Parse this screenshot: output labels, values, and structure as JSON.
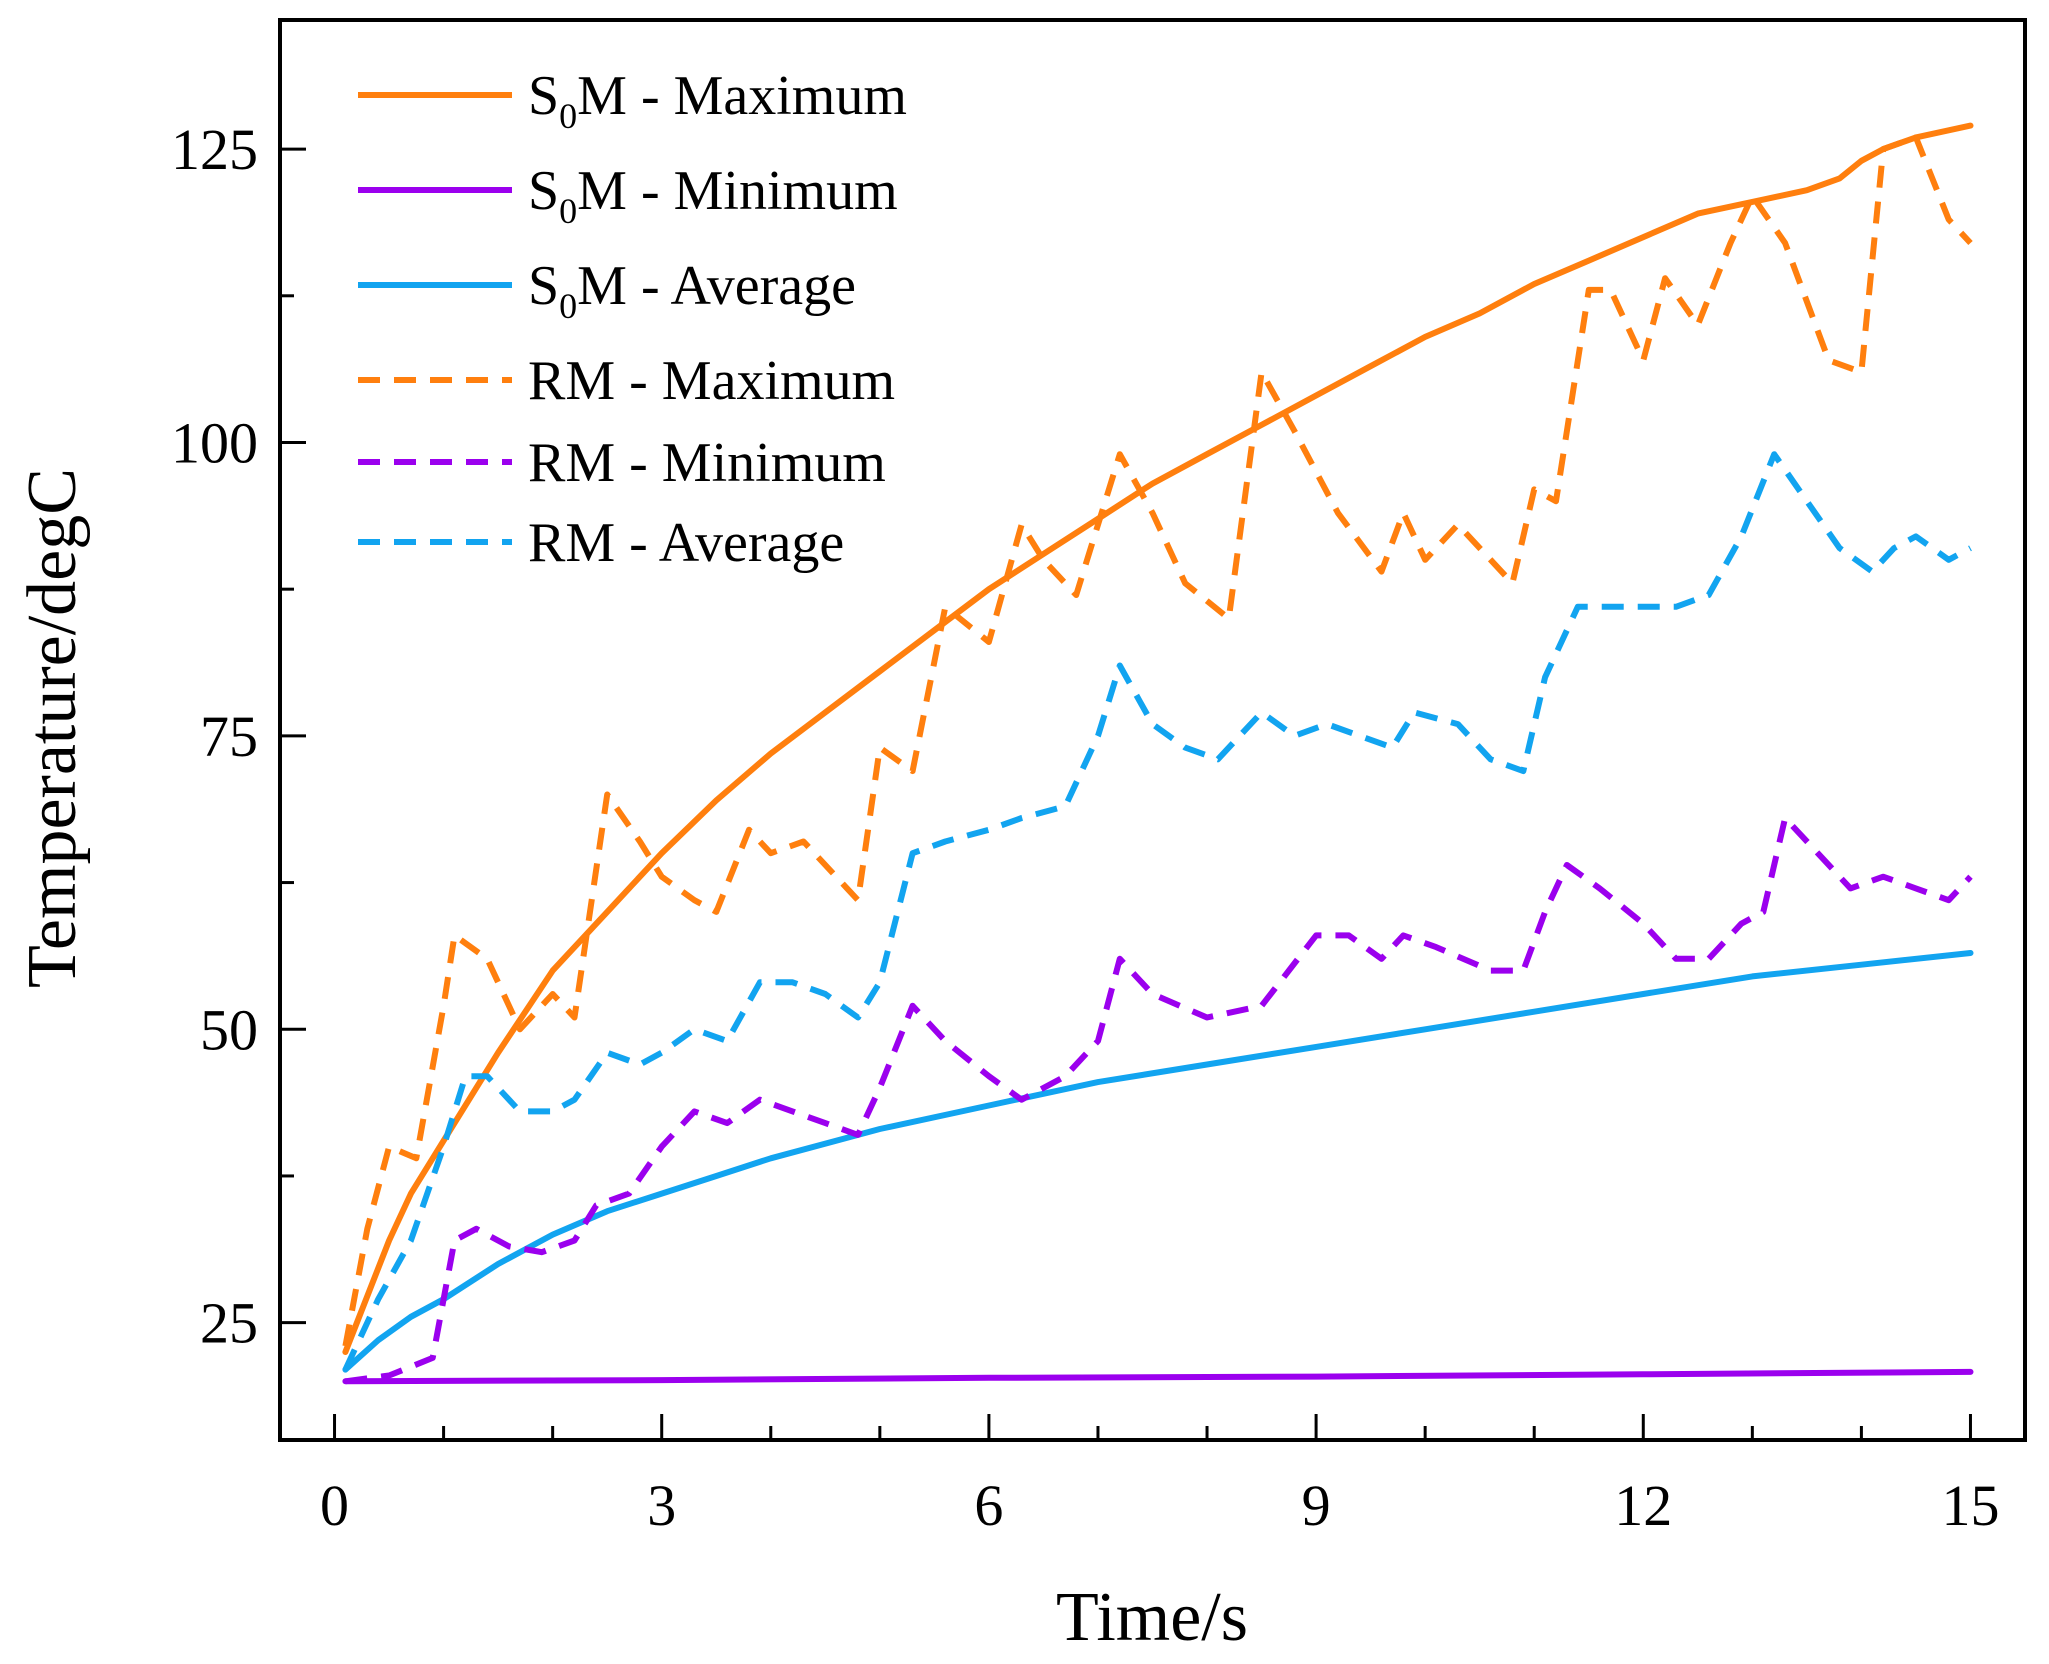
{
  "chart_data": {
    "type": "line",
    "xlabel": "Time/s",
    "ylabel": "Temperature/degC",
    "xlim": [
      -0.5,
      15.5
    ],
    "ylim": [
      15,
      136
    ],
    "xticks": [
      0,
      3,
      6,
      9,
      12,
      15
    ],
    "xtick_labels": [
      "0",
      "3",
      "6",
      "9",
      "12",
      "15"
    ],
    "yticks": [
      25,
      50,
      75,
      100,
      125
    ],
    "ytick_labels": [
      "25",
      "50",
      "75",
      "100",
      "125"
    ],
    "legend_position": "top-left",
    "series": [
      {
        "name": "S0M - Maximum",
        "legend_prefix": "S",
        "legend_sub": "0",
        "legend_suffix": "M - Maximum",
        "color": "#ff7f0e",
        "dash": "solid",
        "x": [
          0.1,
          0.5,
          0.7,
          1.0,
          1.5,
          2.0,
          2.5,
          3.0,
          3.5,
          4.0,
          4.5,
          5.0,
          5.5,
          6.0,
          6.5,
          7.0,
          7.5,
          8.0,
          8.5,
          9.0,
          9.5,
          10.0,
          10.5,
          11.0,
          11.5,
          12.0,
          12.5,
          13.0,
          13.5,
          13.8,
          14.0,
          14.2,
          14.5,
          15.0
        ],
        "y": [
          22.5,
          32,
          36,
          40.5,
          48,
          55,
          60,
          65,
          69.5,
          73.5,
          77,
          80.5,
          84,
          87.5,
          90.5,
          93.5,
          96.5,
          99,
          101.5,
          104,
          106.5,
          109,
          111,
          113.5,
          115.5,
          117.5,
          119.5,
          120.5,
          121.5,
          122.5,
          124,
          125,
          126,
          127
        ]
      },
      {
        "name": "S0M - Minimum",
        "legend_prefix": "S",
        "legend_sub": "0",
        "legend_suffix": "M - Minimum",
        "color": "#9b00ee",
        "dash": "solid",
        "x": [
          0.1,
          3.0,
          6.0,
          9.0,
          12.0,
          15.0
        ],
        "y": [
          20.0,
          20.1,
          20.3,
          20.4,
          20.6,
          20.8
        ]
      },
      {
        "name": "S0M - Average",
        "legend_prefix": "S",
        "legend_sub": "0",
        "legend_suffix": "M - Average",
        "color": "#12a4f0",
        "dash": "solid",
        "x": [
          0.1,
          0.4,
          0.7,
          1.0,
          1.5,
          2.0,
          2.5,
          3.0,
          3.5,
          4.0,
          5.0,
          6.0,
          7.0,
          8.0,
          9.0,
          10.0,
          11.0,
          12.0,
          13.0,
          14.0,
          15.0
        ],
        "y": [
          21,
          23.5,
          25.5,
          27,
          30,
          32.5,
          34.5,
          36,
          37.5,
          39,
          41.5,
          43.5,
          45.5,
          47,
          48.5,
          50,
          51.5,
          53,
          54.5,
          55.5,
          56.5
        ]
      },
      {
        "name": "RM - Maximum",
        "legend_prefix": "RM - Maximum",
        "legend_sub": "",
        "legend_suffix": "",
        "color": "#ff7f0e",
        "dash": "dashed",
        "x": [
          0.1,
          0.3,
          0.5,
          0.75,
          1.0,
          1.1,
          1.4,
          1.7,
          2.0,
          2.2,
          2.5,
          2.8,
          3.0,
          3.3,
          3.5,
          3.8,
          4.0,
          4.3,
          4.8,
          5.0,
          5.3,
          5.6,
          6.0,
          6.3,
          6.5,
          6.8,
          7.2,
          7.5,
          7.8,
          8.2,
          8.5,
          8.8,
          9.2,
          9.6,
          9.8,
          10.0,
          10.3,
          10.8,
          11.0,
          11.2,
          11.5,
          11.7,
          12.0,
          12.2,
          12.5,
          12.8,
          13.0,
          13.3,
          13.7,
          14.0,
          14.2,
          14.5,
          14.8,
          15.0
        ],
        "y": [
          23,
          33,
          40,
          39,
          52,
          58,
          56,
          50,
          53,
          51,
          70,
          66,
          63,
          61,
          60,
          67,
          65,
          66,
          61,
          74,
          72,
          86,
          83,
          93,
          90,
          87,
          99,
          94,
          88,
          85,
          106,
          101,
          94,
          89,
          94,
          90,
          93,
          88,
          96,
          95,
          113,
          113,
          107,
          114,
          110,
          117,
          121,
          117,
          107,
          106,
          125,
          126,
          119,
          117
        ]
      },
      {
        "name": "RM - Minimum",
        "legend_prefix": "RM - Minimum",
        "legend_sub": "",
        "legend_suffix": "",
        "color": "#9b00ee",
        "dash": "dashed",
        "x": [
          0.1,
          0.5,
          0.9,
          1.1,
          1.3,
          1.6,
          1.9,
          2.2,
          2.4,
          2.7,
          3.0,
          3.3,
          3.6,
          3.9,
          4.2,
          4.5,
          4.8,
          5.0,
          5.3,
          5.6,
          6.0,
          6.3,
          6.7,
          7.0,
          7.2,
          7.5,
          8.0,
          8.5,
          9.0,
          9.3,
          9.6,
          9.8,
          10.1,
          10.6,
          10.9,
          11.1,
          11.3,
          11.6,
          12.0,
          12.3,
          12.6,
          12.9,
          13.1,
          13.3,
          13.6,
          13.9,
          14.2,
          14.5,
          14.8,
          15.0
        ],
        "y": [
          20,
          20.5,
          22,
          32,
          33,
          31.5,
          31,
          32,
          35,
          36,
          40,
          43,
          42,
          44,
          43,
          42,
          41,
          45,
          52,
          49,
          46,
          44,
          46,
          49,
          56,
          53,
          51,
          52,
          58,
          58,
          56,
          58,
          57,
          55,
          55,
          60,
          64,
          62,
          59,
          56,
          56,
          59,
          60,
          68,
          65,
          62,
          63,
          62,
          61,
          63
        ]
      },
      {
        "name": "RM - Average",
        "legend_prefix": "RM - Average",
        "legend_sub": "",
        "legend_suffix": "",
        "color": "#12a4f0",
        "dash": "dashed",
        "x": [
          0.1,
          0.4,
          0.7,
          1.0,
          1.2,
          1.4,
          1.7,
          2.0,
          2.2,
          2.5,
          2.8,
          3.0,
          3.3,
          3.6,
          3.9,
          4.2,
          4.5,
          4.8,
          5.0,
          5.3,
          5.6,
          6.0,
          6.3,
          6.7,
          7.0,
          7.2,
          7.5,
          7.8,
          8.1,
          8.5,
          8.8,
          9.1,
          9.4,
          9.7,
          9.9,
          10.3,
          10.6,
          10.9,
          11.1,
          11.4,
          11.7,
          12.0,
          12.3,
          12.6,
          12.9,
          13.2,
          13.5,
          13.8,
          14.1,
          14.3,
          14.5,
          14.8,
          15.0
        ],
        "y": [
          21,
          27,
          32,
          40,
          46,
          46,
          43,
          43,
          44,
          48,
          47,
          48,
          50,
          49,
          54,
          54,
          53,
          51,
          54,
          65,
          66,
          67,
          68,
          69,
          75,
          81,
          76,
          74,
          73,
          77,
          75,
          76,
          75,
          74,
          77,
          76,
          73,
          72,
          80,
          86,
          86,
          86,
          86,
          87,
          92,
          99,
          95,
          91,
          89,
          91,
          92,
          90,
          91
        ]
      }
    ]
  }
}
